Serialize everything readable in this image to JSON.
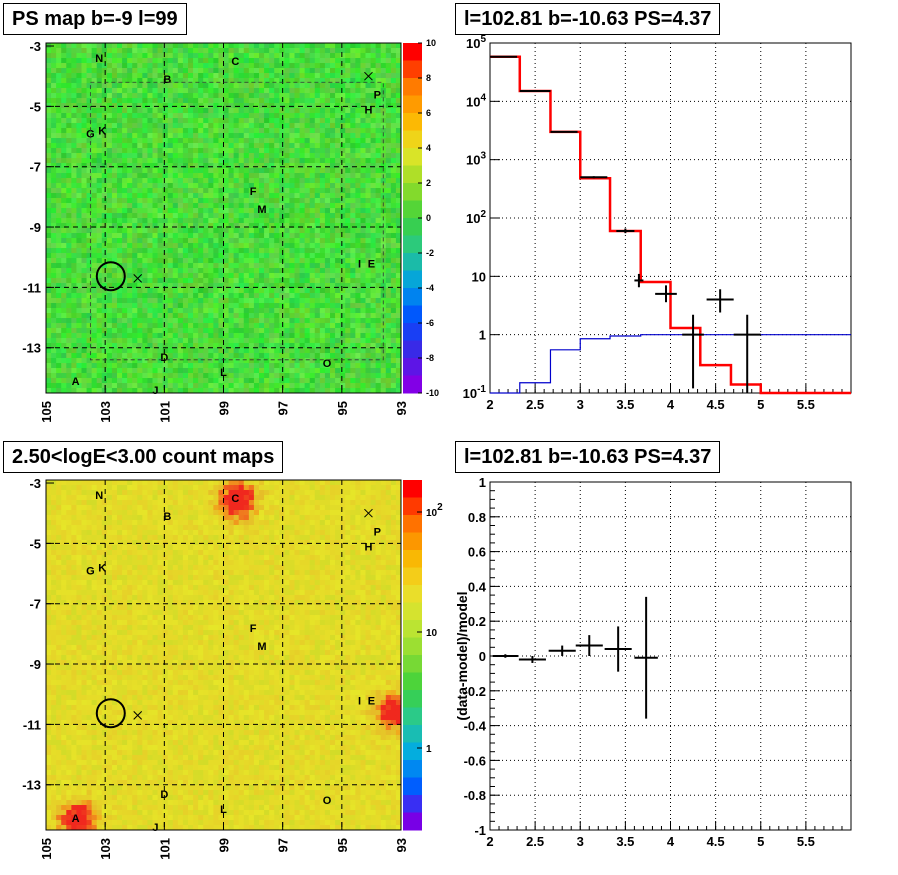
{
  "panels": {
    "ps_map_title": "PS map b=-9 l=99",
    "spectrum_title": "l=102.81 b=-10.63 PS=4.37",
    "count_map_title": "2.50<logE<3.00 count maps",
    "residual_title": "l=102.81 b=-10.63 PS=4.37"
  },
  "colors": {
    "data": "#000000",
    "model": "#ff0000",
    "background_model": "#0000cc",
    "grid": "#000000"
  },
  "chart_data": [
    {
      "type": "heatmap",
      "name": "ps_map",
      "title": "PS map b=-9 l=99",
      "x_ticks": [
        "105",
        "103",
        "101",
        "99",
        "97",
        "95",
        "93"
      ],
      "y_ticks": [
        "-3",
        "-5",
        "-7",
        "-9",
        "-11",
        "-13"
      ],
      "xlim": [
        105,
        93
      ],
      "ylim": [
        -14.5,
        -2.9
      ],
      "colorbar_ticks": [
        "10",
        "8",
        "6",
        "4",
        "2",
        "0",
        "-2",
        "-4",
        "-6",
        "-8",
        "-10"
      ],
      "colorbar_range": [
        -10,
        10
      ],
      "dominant_value": 0.5,
      "source_labels": [
        {
          "label": "N",
          "l": 103.2,
          "b": -3.4
        },
        {
          "label": "C",
          "l": 98.6,
          "b": -3.5
        },
        {
          "label": "B",
          "l": 100.9,
          "b": -4.1
        },
        {
          "label": "P",
          "l": 93.8,
          "b": -4.6
        },
        {
          "label": "H",
          "l": 94.1,
          "b": -5.1
        },
        {
          "label": "G",
          "l": 103.5,
          "b": -5.9
        },
        {
          "label": "K",
          "l": 103.1,
          "b": -5.8
        },
        {
          "label": "F",
          "l": 98.0,
          "b": -7.8
        },
        {
          "label": "M",
          "l": 97.7,
          "b": -8.4
        },
        {
          "label": "I",
          "l": 94.4,
          "b": -10.2
        },
        {
          "label": "E",
          "l": 94.0,
          "b": -10.2
        },
        {
          "label": "D",
          "l": 101.0,
          "b": -13.3
        },
        {
          "label": "O",
          "l": 95.5,
          "b": -13.5
        },
        {
          "label": "L",
          "l": 99.0,
          "b": -13.8
        },
        {
          "label": "A",
          "l": 104.0,
          "b": -14.1
        },
        {
          "label": "J",
          "l": 101.3,
          "b": -14.4
        }
      ],
      "markers": [
        {
          "kind": "circle",
          "l": 102.81,
          "b": -10.63
        },
        {
          "kind": "cross",
          "l": 101.9,
          "b": -10.7
        },
        {
          "kind": "cross",
          "l": 94.1,
          "b": -4.0
        }
      ]
    },
    {
      "type": "line",
      "name": "spectrum",
      "title": "l=102.81 b=-10.63 PS=4.37",
      "x_ticks": [
        "2",
        "2.5",
        "3",
        "3.5",
        "4",
        "4.5",
        "5",
        "5.5"
      ],
      "y_ticks": [
        "10^-1",
        "1",
        "10",
        "10^2",
        "10^3",
        "10^4",
        "10^5"
      ],
      "xlim": [
        2,
        6
      ],
      "ylim": [
        0.1,
        100000
      ],
      "y_scale": "log",
      "series": [
        {
          "name": "",
          "kind": "model-step",
          "color": "#ff0000",
          "edges": [
            2,
            2.33,
            2.67,
            3,
            3.33,
            3.67,
            4,
            4.33,
            4.67,
            5,
            6
          ],
          "values": [
            58000,
            15000,
            3000,
            480,
            60,
            8,
            1.3,
            0.3,
            0.14,
            0.1
          ]
        },
        {
          "name": "",
          "kind": "model-step",
          "color": "#0000cc",
          "edges": [
            2,
            2.33,
            2.67,
            3,
            3.33,
            3.67,
            4,
            4.33,
            4.67,
            5,
            6
          ],
          "values": [
            0.1,
            0.15,
            0.55,
            0.85,
            0.95,
            1.0,
            1.0,
            1.0,
            1.0,
            1.0
          ]
        },
        {
          "name": "",
          "kind": "data-points",
          "color": "#000000",
          "points": [
            {
              "x": 2.15,
              "y": 58000,
              "xerr": 0.15,
              "ylo": 57500,
              "yhi": 58500
            },
            {
              "x": 2.5,
              "y": 15000,
              "xerr": 0.17,
              "ylo": 14800,
              "yhi": 15200
            },
            {
              "x": 2.82,
              "y": 3000,
              "xerr": 0.15,
              "ylo": 2950,
              "yhi": 3050
            },
            {
              "x": 3.15,
              "y": 500,
              "xerr": 0.15,
              "ylo": 480,
              "yhi": 520
            },
            {
              "x": 3.5,
              "y": 60,
              "xerr": 0.1,
              "ylo": 55,
              "yhi": 66
            },
            {
              "x": 3.65,
              "y": 8.5,
              "xerr": 0.05,
              "ylo": 6.5,
              "yhi": 11
            },
            {
              "x": 3.95,
              "y": 5,
              "xerr": 0.12,
              "ylo": 3.6,
              "yhi": 7
            },
            {
              "x": 4.25,
              "y": 1,
              "xerr": 0.12,
              "ylo": 0.12,
              "yhi": 2.2
            },
            {
              "x": 4.55,
              "y": 4,
              "xerr": 0.15,
              "ylo": 2.4,
              "yhi": 6
            },
            {
              "x": 4.85,
              "y": 1,
              "xerr": 0.15,
              "ylo": 0.1,
              "yhi": 2.2
            }
          ]
        }
      ]
    },
    {
      "type": "heatmap",
      "name": "count_map",
      "title": "2.50<logE<3.00 count maps",
      "x_ticks": [
        "105",
        "103",
        "101",
        "99",
        "97",
        "95",
        "93"
      ],
      "y_ticks": [
        "-3",
        "-5",
        "-7",
        "-9",
        "-11",
        "-13"
      ],
      "xlim": [
        105,
        93
      ],
      "ylim": [
        -14.5,
        -2.9
      ],
      "colorbar_ticks": [
        "10^2",
        "10",
        "1"
      ],
      "colorbar_scale": "log",
      "bright_spots": [
        {
          "label": "C",
          "l": 98.6,
          "b": -3.5
        },
        {
          "label": "E",
          "l": 93.3,
          "b": -10.5
        },
        {
          "label": "A",
          "l": 104.0,
          "b": -14.1
        }
      ]
    },
    {
      "type": "scatter",
      "name": "residuals",
      "title": "l=102.81 b=-10.63 PS=4.37",
      "ylabel": "(data-model)/model",
      "x_ticks": [
        "2",
        "2.5",
        "3",
        "3.5",
        "4",
        "4.5",
        "5",
        "5.5"
      ],
      "y_ticks": [
        "1",
        "0.8",
        "0.6",
        "0.4",
        "0.2",
        "0",
        "-0.2",
        "-0.4",
        "-0.6",
        "-0.8",
        "-1"
      ],
      "xlim": [
        2,
        6
      ],
      "ylim": [
        -1,
        1
      ],
      "points": [
        {
          "x": 2.17,
          "y": 0.0,
          "xerr": 0.14,
          "ylo": -0.01,
          "yhi": 0.01
        },
        {
          "x": 2.47,
          "y": -0.02,
          "xerr": 0.15,
          "ylo": -0.04,
          "yhi": 0.0
        },
        {
          "x": 2.8,
          "y": 0.03,
          "xerr": 0.15,
          "ylo": 0.0,
          "yhi": 0.06
        },
        {
          "x": 3.1,
          "y": 0.06,
          "xerr": 0.15,
          "ylo": 0.0,
          "yhi": 0.12
        },
        {
          "x": 3.42,
          "y": 0.04,
          "xerr": 0.15,
          "ylo": -0.09,
          "yhi": 0.17
        },
        {
          "x": 3.73,
          "y": -0.01,
          "xerr": 0.13,
          "ylo": -0.36,
          "yhi": 0.34
        }
      ]
    }
  ]
}
